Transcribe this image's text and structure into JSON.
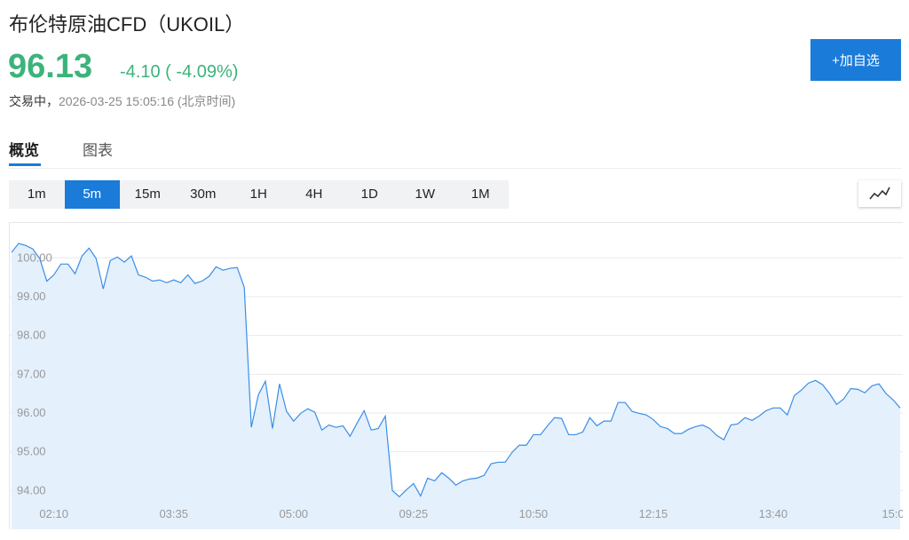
{
  "header": {
    "title": "布伦特原油CFD（UKOIL）",
    "price": "96.13",
    "change": "-4.10 ( -4.09%)",
    "status": "交易中，",
    "timestamp": "2026-03-25 15:05:16 (北京时间)",
    "button": "+加自选"
  },
  "tabs": [
    "概览",
    "图表"
  ],
  "active_tab": 0,
  "intervals": [
    "1m",
    "5m",
    "15m",
    "30m",
    "1H",
    "4H",
    "1D",
    "1W",
    "1M"
  ],
  "active_interval": 1,
  "chart_data": {
    "type": "area",
    "color": "#3a8ee6",
    "fill_color": "#e4f0fc",
    "grid": true,
    "values": [
      100.14,
      100.37,
      100.32,
      100.23,
      99.98,
      99.4,
      99.56,
      99.84,
      99.84,
      99.59,
      100.05,
      100.25,
      99.98,
      99.2,
      99.93,
      100.02,
      99.89,
      100.05,
      99.56,
      99.5,
      99.4,
      99.43,
      99.36,
      99.43,
      99.36,
      99.56,
      99.34,
      99.4,
      99.52,
      99.77,
      99.68,
      99.73,
      99.75,
      99.24,
      95.63,
      96.47,
      96.82,
      95.6,
      96.75,
      96.04,
      95.79,
      95.99,
      96.11,
      96.02,
      95.56,
      95.69,
      95.63,
      95.67,
      95.4,
      95.74,
      96.06,
      95.56,
      95.6,
      95.92,
      94.0,
      93.84,
      94.02,
      94.18,
      93.86,
      94.32,
      94.25,
      94.46,
      94.32,
      94.14,
      94.25,
      94.3,
      94.32,
      94.39,
      94.69,
      94.73,
      94.73,
      94.99,
      95.17,
      95.17,
      95.44,
      95.44,
      95.67,
      95.88,
      95.86,
      95.44,
      95.44,
      95.51,
      95.88,
      95.67,
      95.79,
      95.79,
      96.27,
      96.27,
      96.04,
      95.99,
      95.95,
      95.83,
      95.65,
      95.6,
      95.47,
      95.47,
      95.58,
      95.65,
      95.69,
      95.6,
      95.42,
      95.31,
      95.69,
      95.72,
      95.88,
      95.81,
      95.92,
      96.06,
      96.13,
      96.13,
      95.95,
      96.45,
      96.59,
      96.77,
      96.84,
      96.73,
      96.5,
      96.22,
      96.36,
      96.63,
      96.61,
      96.52,
      96.7,
      96.75,
      96.5,
      96.34,
      96.13
    ],
    "xlim": [
      0,
      126
    ],
    "xticks": [
      {
        "value": 6,
        "label": "02:10"
      },
      {
        "value": 23,
        "label": "03:35"
      },
      {
        "value": 40,
        "label": "05:00"
      },
      {
        "value": 57,
        "label": "09:25"
      },
      {
        "value": 74,
        "label": "10:50"
      },
      {
        "value": 91,
        "label": "12:15"
      },
      {
        "value": 108,
        "label": "13:40"
      },
      {
        "value": 125,
        "label": "15:0"
      }
    ],
    "ylim": [
      93,
      100.9
    ],
    "yticks": [
      {
        "value": 94,
        "label": "94.00"
      },
      {
        "value": 95,
        "label": "95.00"
      },
      {
        "value": 96,
        "label": "96.00"
      },
      {
        "value": 97,
        "label": "97.00"
      },
      {
        "value": 98,
        "label": "98.00"
      },
      {
        "value": 99,
        "label": "99.00"
      },
      {
        "value": 100,
        "label": "100.00"
      }
    ]
  }
}
